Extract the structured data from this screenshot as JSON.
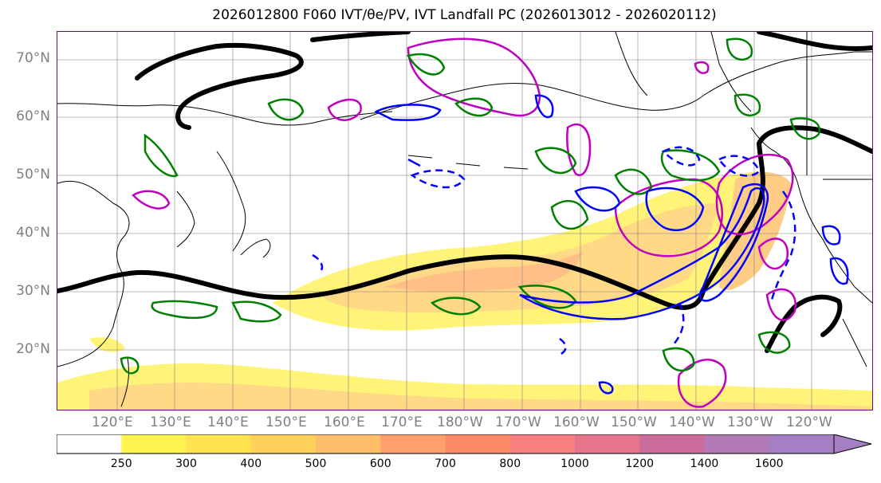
{
  "title": "2026012800 F060 IVT/θe/PV, IVT Landfall PC (2026013012 - 2026020112)",
  "map": {
    "lat_labels": [
      "70°N",
      "60°N",
      "50°N",
      "40°N",
      "30°N",
      "20°N"
    ],
    "lon_labels": [
      "120°E",
      "130°E",
      "140°E",
      "150°E",
      "160°E",
      "170°E",
      "180°W",
      "170°W",
      "160°W",
      "150°W",
      "140°W",
      "130°W",
      "120°W"
    ],
    "layers": {
      "ivt_fill": "ivt-shading",
      "theta_e_contour_color": "#008000",
      "ivt_landfall_pc_color": "#0000ff",
      "pv_contour_color": "#c000c0",
      "thick_contour_color": "#000000"
    }
  },
  "colorbar": {
    "ticks": [
      "250",
      "300",
      "400",
      "500",
      "600",
      "700",
      "800",
      "1000",
      "1200",
      "1400",
      "1600"
    ],
    "colors": [
      "#ffffff",
      "#fff44f",
      "#ffe34f",
      "#ffd05a",
      "#ffbe6a",
      "#ffa06a",
      "#ff8a6a",
      "#f77f7f",
      "#e7748a",
      "#cc6c9c",
      "#b17ab5",
      "#a57ec4"
    ]
  }
}
